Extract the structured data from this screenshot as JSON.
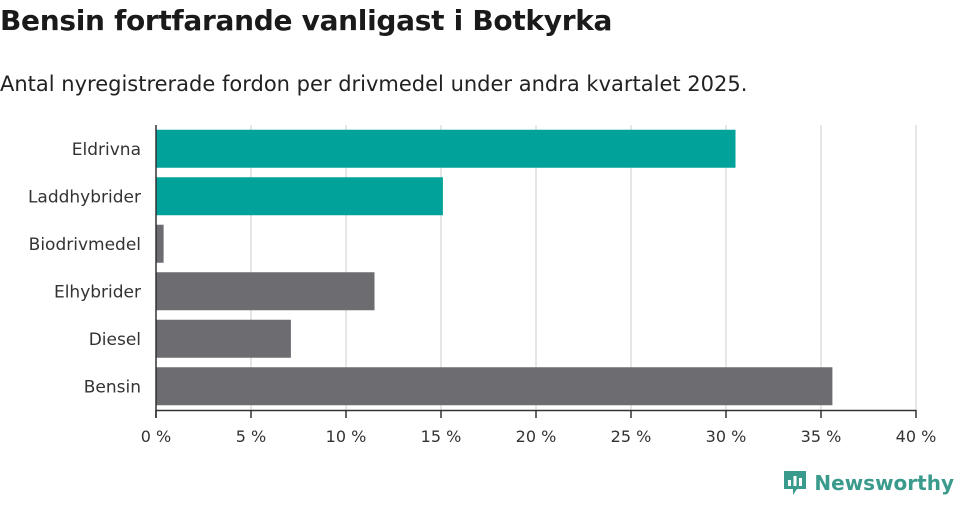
{
  "header": {
    "title": "Bensin fortfarande vanligast i Botkyrka",
    "subtitle": "Antal nyregistrerade fordon per drivmedel under andra kvartalet 2025."
  },
  "brand": {
    "name": "Newsworthy",
    "icon": "newsworthy-logo-icon",
    "color": "#3a9a8c"
  },
  "colors": {
    "highlight": "#00a29a",
    "other": "#6d6c70",
    "grid": "#dddddd",
    "axis": "#333333"
  },
  "chart_data": {
    "type": "bar",
    "orientation": "horizontal",
    "title": "Bensin fortfarande vanligast i Botkyrka",
    "subtitle": "Antal nyregistrerade fordon per drivmedel under andra kvartalet 2025.",
    "categories": [
      "Eldrivna",
      "Laddhybrider",
      "Biodrivmedel",
      "Elhybrider",
      "Diesel",
      "Bensin"
    ],
    "values": [
      30.5,
      15.1,
      0.4,
      11.5,
      7.1,
      35.6
    ],
    "highlighted": [
      true,
      true,
      false,
      false,
      false,
      false
    ],
    "xlim": [
      0,
      40
    ],
    "xticks": [
      0,
      5,
      10,
      15,
      20,
      25,
      30,
      35,
      40
    ],
    "xtick_labels": [
      "0 %",
      "5 %",
      "10 %",
      "15 %",
      "20 %",
      "25 %",
      "30 %",
      "35 %",
      "40 %"
    ],
    "xlabel": "",
    "ylabel": "",
    "grid": true,
    "legend": "none"
  }
}
